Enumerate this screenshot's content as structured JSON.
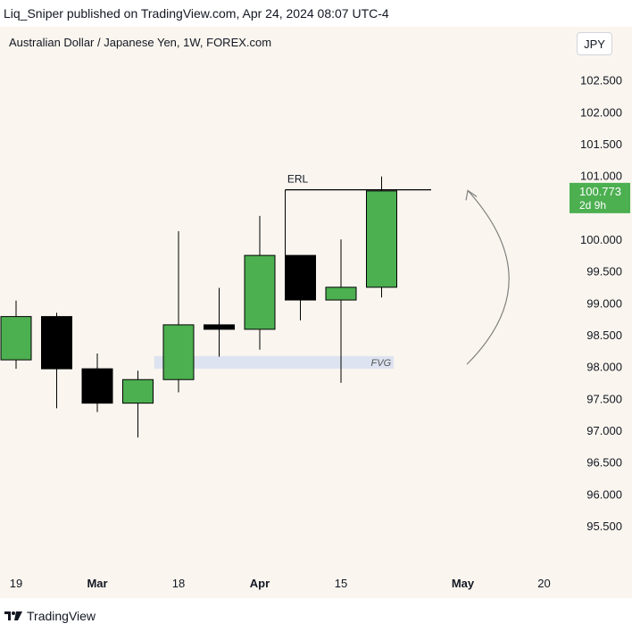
{
  "header": {
    "published_by": "Liq_Sniper published on TradingView.com, Apr 24, 2024 08:07 UTC-4"
  },
  "chart_title": "Australian Dollar / Japanese Yen, 1W, FOREX.com",
  "currency_button": "JPY",
  "footer": {
    "brand": "TradingView"
  },
  "colors": {
    "bull": "#4caf50",
    "bear": "#000000",
    "fvg": "#dde3f0",
    "price_tag": "#4caf50",
    "background": "#faf6ef"
  },
  "chart_data": {
    "type": "candlestick",
    "title": "Australian Dollar / Japanese Yen, 1W, FOREX.com",
    "ylim": [
      94.8,
      103.35
    ],
    "y_ticks": [
      "102.500",
      "102.000",
      "101.500",
      "101.000",
      "100.000",
      "99.500",
      "99.000",
      "98.500",
      "98.000",
      "97.500",
      "97.000",
      "96.500",
      "96.000",
      "95.500"
    ],
    "x_ticks": [
      {
        "label": "19",
        "week_index": 0,
        "bold": false
      },
      {
        "label": "Mar",
        "week_index": 2,
        "bold": true
      },
      {
        "label": "18",
        "week_index": 4,
        "bold": false
      },
      {
        "label": "Apr",
        "week_index": 6,
        "bold": true
      },
      {
        "label": "15",
        "week_index": 8,
        "bold": false
      },
      {
        "label": "May",
        "week_index": 11,
        "bold": true
      },
      {
        "label": "20",
        "week_index": 13,
        "bold": false
      }
    ],
    "candles": [
      {
        "week_index": 0,
        "open": 98.12,
        "high": 99.05,
        "low": 97.98,
        "close": 98.8
      },
      {
        "week_index": 1,
        "open": 98.8,
        "high": 98.86,
        "low": 97.36,
        "close": 97.98
      },
      {
        "week_index": 2,
        "open": 97.98,
        "high": 98.22,
        "low": 97.3,
        "close": 97.44
      },
      {
        "week_index": 3,
        "open": 97.44,
        "high": 97.95,
        "low": 96.9,
        "close": 97.81
      },
      {
        "week_index": 4,
        "open": 97.81,
        "high": 100.14,
        "low": 97.61,
        "close": 98.67
      },
      {
        "week_index": 5,
        "open": 98.67,
        "high": 99.25,
        "low": 98.17,
        "close": 98.6
      },
      {
        "week_index": 6,
        "open": 98.6,
        "high": 100.38,
        "low": 98.28,
        "close": 99.76
      },
      {
        "week_index": 7,
        "open": 99.76,
        "high": 99.76,
        "low": 98.74,
        "close": 99.06
      },
      {
        "week_index": 8,
        "open": 99.06,
        "high": 100.01,
        "low": 97.76,
        "close": 99.26
      },
      {
        "week_index": 9,
        "open": 99.26,
        "high": 101.0,
        "low": 99.1,
        "close": 100.773
      }
    ],
    "annotations": [
      {
        "type": "level",
        "label": "ERL",
        "price": 100.79,
        "from_week": 7,
        "to_week": 10
      },
      {
        "type": "zone",
        "label": "FVG",
        "price_top": 98.18,
        "price_bottom": 97.98,
        "from_week": 3.4,
        "to_week": 9.3
      },
      {
        "type": "arrow",
        "label": "",
        "from_price": 98.05,
        "to_price": 100.78,
        "at_week": 11.1
      }
    ],
    "last_price": {
      "value": "100.773",
      "countdown": "2d 9h",
      "price": 100.773
    }
  }
}
